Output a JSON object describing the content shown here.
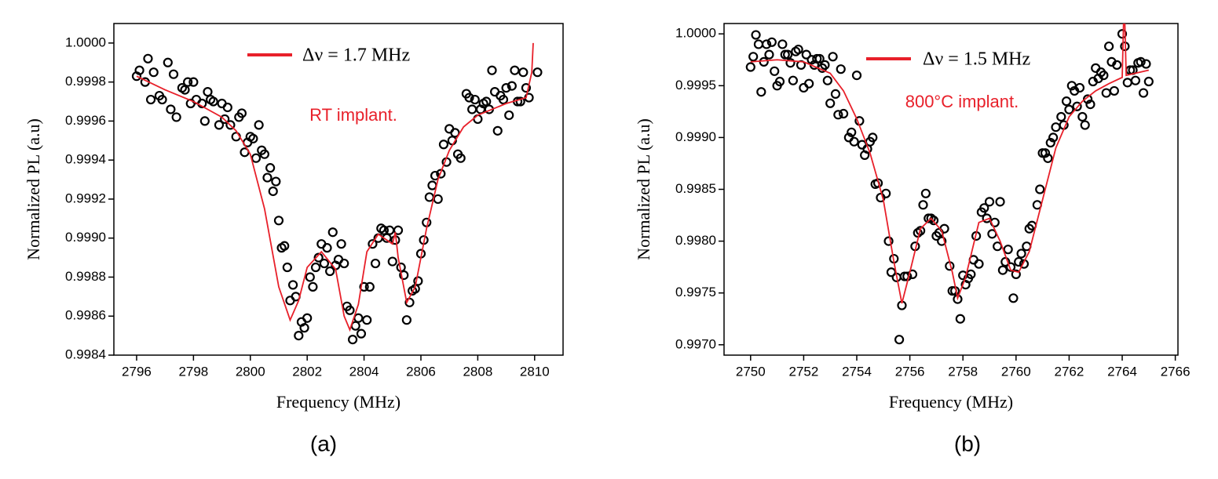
{
  "chart_data": [
    {
      "type": "scatter",
      "x_label": "Frequency (MHz)",
      "y_label": "Normalized PL (a.u)",
      "annotation": "RT implant.",
      "panel_label": "(a)",
      "xlim": [
        2795.2,
        2811
      ],
      "ylim": [
        0.9984,
        1.0001
      ],
      "xticks": [
        2796,
        2798,
        2800,
        2802,
        2804,
        2806,
        2808,
        2810
      ],
      "yticks": [
        0.9984,
        0.9986,
        0.9988,
        {
          "value": 0.999,
          "label": "0.9990"
        },
        0.9992,
        0.9994,
        0.9996,
        0.9998,
        {
          "value": 1,
          "label": "1.0000"
        }
      ],
      "series": [
        {
          "type": "scatter",
          "color": "#000000",
          "x": [
            2796,
            2796.1,
            2796.3,
            2796.4,
            2796.5,
            2796.6,
            2796.8,
            2796.9,
            2797.1,
            2797.2,
            2797.3,
            2797.4,
            2797.6,
            2797.7,
            2797.8,
            2797.9,
            2798,
            2798.1,
            2798.3,
            2798.4,
            2798.5,
            2798.6,
            2798.7,
            2798.9,
            2799,
            2799.1,
            2799.2,
            2799.3,
            2799.5,
            2799.6,
            2799.7,
            2799.8,
            2799.9,
            2800,
            2800.1,
            2800.2,
            2800.3,
            2800.4,
            2800.5,
            2800.6,
            2800.7,
            2800.8,
            2800.9,
            2801,
            2801.1,
            2801.2,
            2801.3,
            2801.4,
            2801.5,
            2801.6,
            2801.7,
            2801.8,
            2801.9,
            2802,
            2802.1,
            2802.2,
            2802.3,
            2802.4,
            2802.5,
            2802.6,
            2802.7,
            2802.8,
            2802.9,
            2803,
            2803.1,
            2803.2,
            2803.3,
            2803.4,
            2803.5,
            2803.6,
            2803.7,
            2803.8,
            2803.9,
            2804,
            2804.1,
            2804.2,
            2804.3,
            2804.4,
            2804.5,
            2804.6,
            2804.7,
            2804.8,
            2804.9,
            2805,
            2805.1,
            2805.2,
            2805.3,
            2805.4,
            2805.5,
            2805.6,
            2805.7,
            2805.8,
            2805.9,
            2806,
            2806.1,
            2806.2,
            2806.3,
            2806.4,
            2806.5,
            2806.6,
            2806.7,
            2806.8,
            2806.9,
            2807,
            2807.1,
            2807.2,
            2807.3,
            2807.4,
            2807.6,
            2807.7,
            2807.8,
            2807.9,
            2808,
            2808.1,
            2808.2,
            2808.3,
            2808.4,
            2808.5,
            2808.6,
            2808.7,
            2808.8,
            2808.9,
            2809,
            2809.1,
            2809.2,
            2809.3,
            2809.4,
            2809.5,
            2809.6,
            2809.7,
            2809.8,
            2810.1
          ],
          "values": [
            0.99983,
            0.99986,
            0.9998,
            0.99992,
            0.99971,
            0.99985,
            0.99973,
            0.99971,
            0.9999,
            0.99966,
            0.99984,
            0.99962,
            0.99977,
            0.99976,
            0.9998,
            0.99969,
            0.9998,
            0.99971,
            0.99969,
            0.9996,
            0.99975,
            0.99971,
            0.9997,
            0.99958,
            0.99969,
            0.99961,
            0.99967,
            0.99958,
            0.99952,
            0.99962,
            0.99964,
            0.99944,
            0.99949,
            0.99952,
            0.99951,
            0.99941,
            0.99958,
            0.99945,
            0.99943,
            0.99931,
            0.99936,
            0.99924,
            0.99929,
            0.99909,
            0.99895,
            0.99896,
            0.99885,
            0.99868,
            0.99876,
            0.9987,
            0.9985,
            0.99857,
            0.99854,
            0.99859,
            0.9988,
            0.99875,
            0.99885,
            0.9989,
            0.99897,
            0.99887,
            0.99895,
            0.99883,
            0.99903,
            0.99886,
            0.99889,
            0.99897,
            0.99887,
            0.99865,
            0.99863,
            0.99848,
            0.99855,
            0.99859,
            0.99851,
            0.99875,
            0.99858,
            0.99875,
            0.99897,
            0.99887,
            0.999,
            0.99905,
            0.99904,
            0.999,
            0.99904,
            0.99888,
            0.99899,
            0.99904,
            0.99885,
            0.99881,
            0.99858,
            0.99867,
            0.99873,
            0.99874,
            0.99878,
            0.99892,
            0.99899,
            0.99908,
            0.99921,
            0.99927,
            0.99932,
            0.9992,
            0.99933,
            0.99948,
            0.99939,
            0.99956,
            0.9995,
            0.99954,
            0.99943,
            0.99941,
            0.99974,
            0.99972,
            0.99966,
            0.99971,
            0.99961,
            0.99966,
            0.99969,
            0.9997,
            0.99966,
            0.99986,
            0.99975,
            0.99955,
            0.99973,
            0.99971,
            0.99977,
            0.99963,
            0.99978,
            0.99986,
            0.9997,
            0.9997,
            0.99985,
            0.99977,
            0.99972,
            0.99985
          ]
        },
        {
          "type": "line",
          "name": "Δν = 1.7 MHz",
          "color": "#e8202a",
          "x": [
            2796,
            2797,
            2798,
            2799,
            2799.5,
            2800,
            2800.5,
            2801,
            2801.4,
            2801.7,
            2802,
            2802.5,
            2803,
            2803.3,
            2803.5,
            2803.8,
            2804.1,
            2804.5,
            2805,
            2805.1,
            2805.2,
            2805.5,
            2805.8,
            2806.2,
            2806.6,
            2807,
            2807.5,
            2808,
            2809,
            2809.7,
            2809.9,
            2809.95
          ],
          "values": [
            0.99983,
            0.99976,
            0.9997,
            0.99962,
            0.99955,
            0.99943,
            0.99915,
            0.99875,
            0.99858,
            0.99868,
            0.99885,
            0.99893,
            0.99884,
            0.9986,
            0.99853,
            0.99866,
            0.99893,
            0.99902,
            0.99897,
            0.99903,
            0.9989,
            0.99867,
            0.99875,
            0.99905,
            0.9993,
            0.99945,
            0.99957,
            0.99963,
            0.99969,
            0.99972,
            0.99985,
            1
          ]
        }
      ]
    },
    {
      "type": "scatter",
      "x_label": "Frequency (MHz)",
      "y_label": "Normalized PL (a.u)",
      "annotation": "800°C implant.",
      "panel_label": "(b)",
      "xlim": [
        2749,
        2766.1
      ],
      "ylim": [
        0.9969,
        1.0001
      ],
      "xticks": [
        2750,
        2752,
        2754,
        2756,
        2758,
        2760,
        2762,
        2764,
        2766
      ],
      "yticks": [
        {
          "value": 0.997,
          "label": "0.9970"
        },
        0.9975,
        {
          "value": 0.998,
          "label": "0.9980"
        },
        0.9985,
        {
          "value": 0.999,
          "label": "0.9990"
        },
        0.9995,
        {
          "value": 1,
          "label": "1.0000"
        }
      ],
      "series": [
        {
          "type": "scatter",
          "color": "#000000",
          "x": [
            2750,
            2750.1,
            2750.2,
            2750.3,
            2750.4,
            2750.5,
            2750.6,
            2750.7,
            2750.8,
            2750.9,
            2751,
            2751.1,
            2751.2,
            2751.3,
            2751.4,
            2751.5,
            2751.6,
            2751.7,
            2751.8,
            2751.9,
            2752,
            2752.1,
            2752.2,
            2752.3,
            2752.4,
            2752.5,
            2752.6,
            2752.7,
            2752.8,
            2752.9,
            2753,
            2753.1,
            2753.2,
            2753.3,
            2753.4,
            2753.5,
            2753.7,
            2753.8,
            2753.9,
            2754,
            2754.1,
            2754.2,
            2754.3,
            2754.4,
            2754.5,
            2754.6,
            2754.7,
            2754.8,
            2754.9,
            2755.1,
            2755.2,
            2755.3,
            2755.4,
            2755.5,
            2755.6,
            2755.7,
            2755.8,
            2755.9,
            2756.1,
            2756.2,
            2756.3,
            2756.4,
            2756.5,
            2756.6,
            2756.7,
            2756.8,
            2756.9,
            2757,
            2757.1,
            2757.2,
            2757.3,
            2757.5,
            2757.6,
            2757.7,
            2757.8,
            2757.9,
            2758,
            2758.1,
            2758.2,
            2758.3,
            2758.4,
            2758.5,
            2758.6,
            2758.7,
            2758.8,
            2758.9,
            2759,
            2759.1,
            2759.2,
            2759.3,
            2759.4,
            2759.5,
            2759.6,
            2759.7,
            2759.8,
            2759.9,
            2760,
            2760.1,
            2760.2,
            2760.3,
            2760.4,
            2760.5,
            2760.6,
            2760.8,
            2760.9,
            2761,
            2761.1,
            2761.2,
            2761.3,
            2761.4,
            2761.5,
            2761.7,
            2761.8,
            2761.9,
            2762,
            2762.1,
            2762.2,
            2762.3,
            2762.4,
            2762.5,
            2762.6,
            2762.7,
            2762.8,
            2762.9,
            2763,
            2763.1,
            2763.2,
            2763.3,
            2763.4,
            2763.5,
            2763.6,
            2763.7,
            2763.8,
            2764,
            2764.1,
            2764.2,
            2764.3,
            2764.4,
            2764.5,
            2764.6,
            2764.7,
            2764.8,
            2764.9,
            2765
          ],
          "values": [
            0.99968,
            0.99978,
            0.99999,
            0.9999,
            0.99944,
            0.99973,
            0.9999,
            0.9998,
            0.99992,
            0.99964,
            0.9995,
            0.99954,
            0.9999,
            0.9998,
            0.9998,
            0.99972,
            0.99955,
            0.99983,
            0.99985,
            0.9997,
            0.99948,
            0.9998,
            0.99952,
            0.99975,
            0.9997,
            0.99976,
            0.99976,
            0.99967,
            0.9997,
            0.99955,
            0.99933,
            0.99978,
            0.99942,
            0.99922,
            0.99966,
            0.99923,
            0.999,
            0.99905,
            0.99896,
            0.9996,
            0.99916,
            0.99893,
            0.99883,
            0.99889,
            0.99896,
            0.999,
            0.99855,
            0.99856,
            0.99842,
            0.99846,
            0.998,
            0.9977,
            0.99783,
            0.99765,
            0.99705,
            0.99738,
            0.99766,
            0.99766,
            0.99768,
            0.99795,
            0.99808,
            0.9981,
            0.99835,
            0.99846,
            0.99822,
            0.99822,
            0.9982,
            0.99805,
            0.99808,
            0.998,
            0.99812,
            0.99776,
            0.99752,
            0.99752,
            0.99744,
            0.99725,
            0.99767,
            0.99758,
            0.99764,
            0.99768,
            0.99782,
            0.99805,
            0.99778,
            0.99828,
            0.99832,
            0.99822,
            0.99838,
            0.99807,
            0.99818,
            0.99795,
            0.99838,
            0.99772,
            0.9978,
            0.99792,
            0.99775,
            0.99745,
            0.99768,
            0.9978,
            0.99788,
            0.99778,
            0.99795,
            0.99812,
            0.99815,
            0.99835,
            0.9985,
            0.99885,
            0.99885,
            0.9988,
            0.99895,
            0.999,
            0.9991,
            0.9992,
            0.99912,
            0.99935,
            0.99927,
            0.9995,
            0.99945,
            0.9993,
            0.99948,
            0.9992,
            0.99912,
            0.99937,
            0.99932,
            0.99954,
            0.99967,
            0.99957,
            0.99963,
            0.9996,
            0.99943,
            0.99988,
            0.99973,
            0.99945,
            0.9997,
            1,
            0.99988,
            0.99953,
            0.99965,
            0.99965,
            0.99955,
            0.99972,
            0.99973,
            0.99943,
            0.99971,
            0.99954
          ]
        },
        {
          "type": "line",
          "name": "Δν = 1.5 MHz",
          "color": "#e8202a",
          "x": [
            2750,
            2751,
            2752,
            2753,
            2753.5,
            2754,
            2754.5,
            2755,
            2755.4,
            2755.7,
            2756,
            2756.4,
            2756.8,
            2757.2,
            2757.6,
            2757.8,
            2758.1,
            2758.6,
            2759,
            2759.4,
            2759.8,
            2760.1,
            2760.5,
            2761,
            2761.5,
            2762,
            2762.5,
            2763,
            2763.5,
            2764,
            2764.05,
            2764.1,
            2764.15,
            2765
          ],
          "values": [
            0.99973,
            0.99975,
            0.99973,
            0.99962,
            0.99945,
            0.99918,
            0.99885,
            0.9984,
            0.9978,
            0.9974,
            0.9977,
            0.99812,
            0.99822,
            0.9981,
            0.9977,
            0.99745,
            0.99765,
            0.99818,
            0.99822,
            0.998,
            0.99772,
            0.9977,
            0.9979,
            0.9984,
            0.9989,
            0.9992,
            0.99935,
            0.99945,
            0.99952,
            0.99958,
            1.0001,
            1.0001,
            0.9996,
            0.99965
          ]
        }
      ]
    }
  ]
}
